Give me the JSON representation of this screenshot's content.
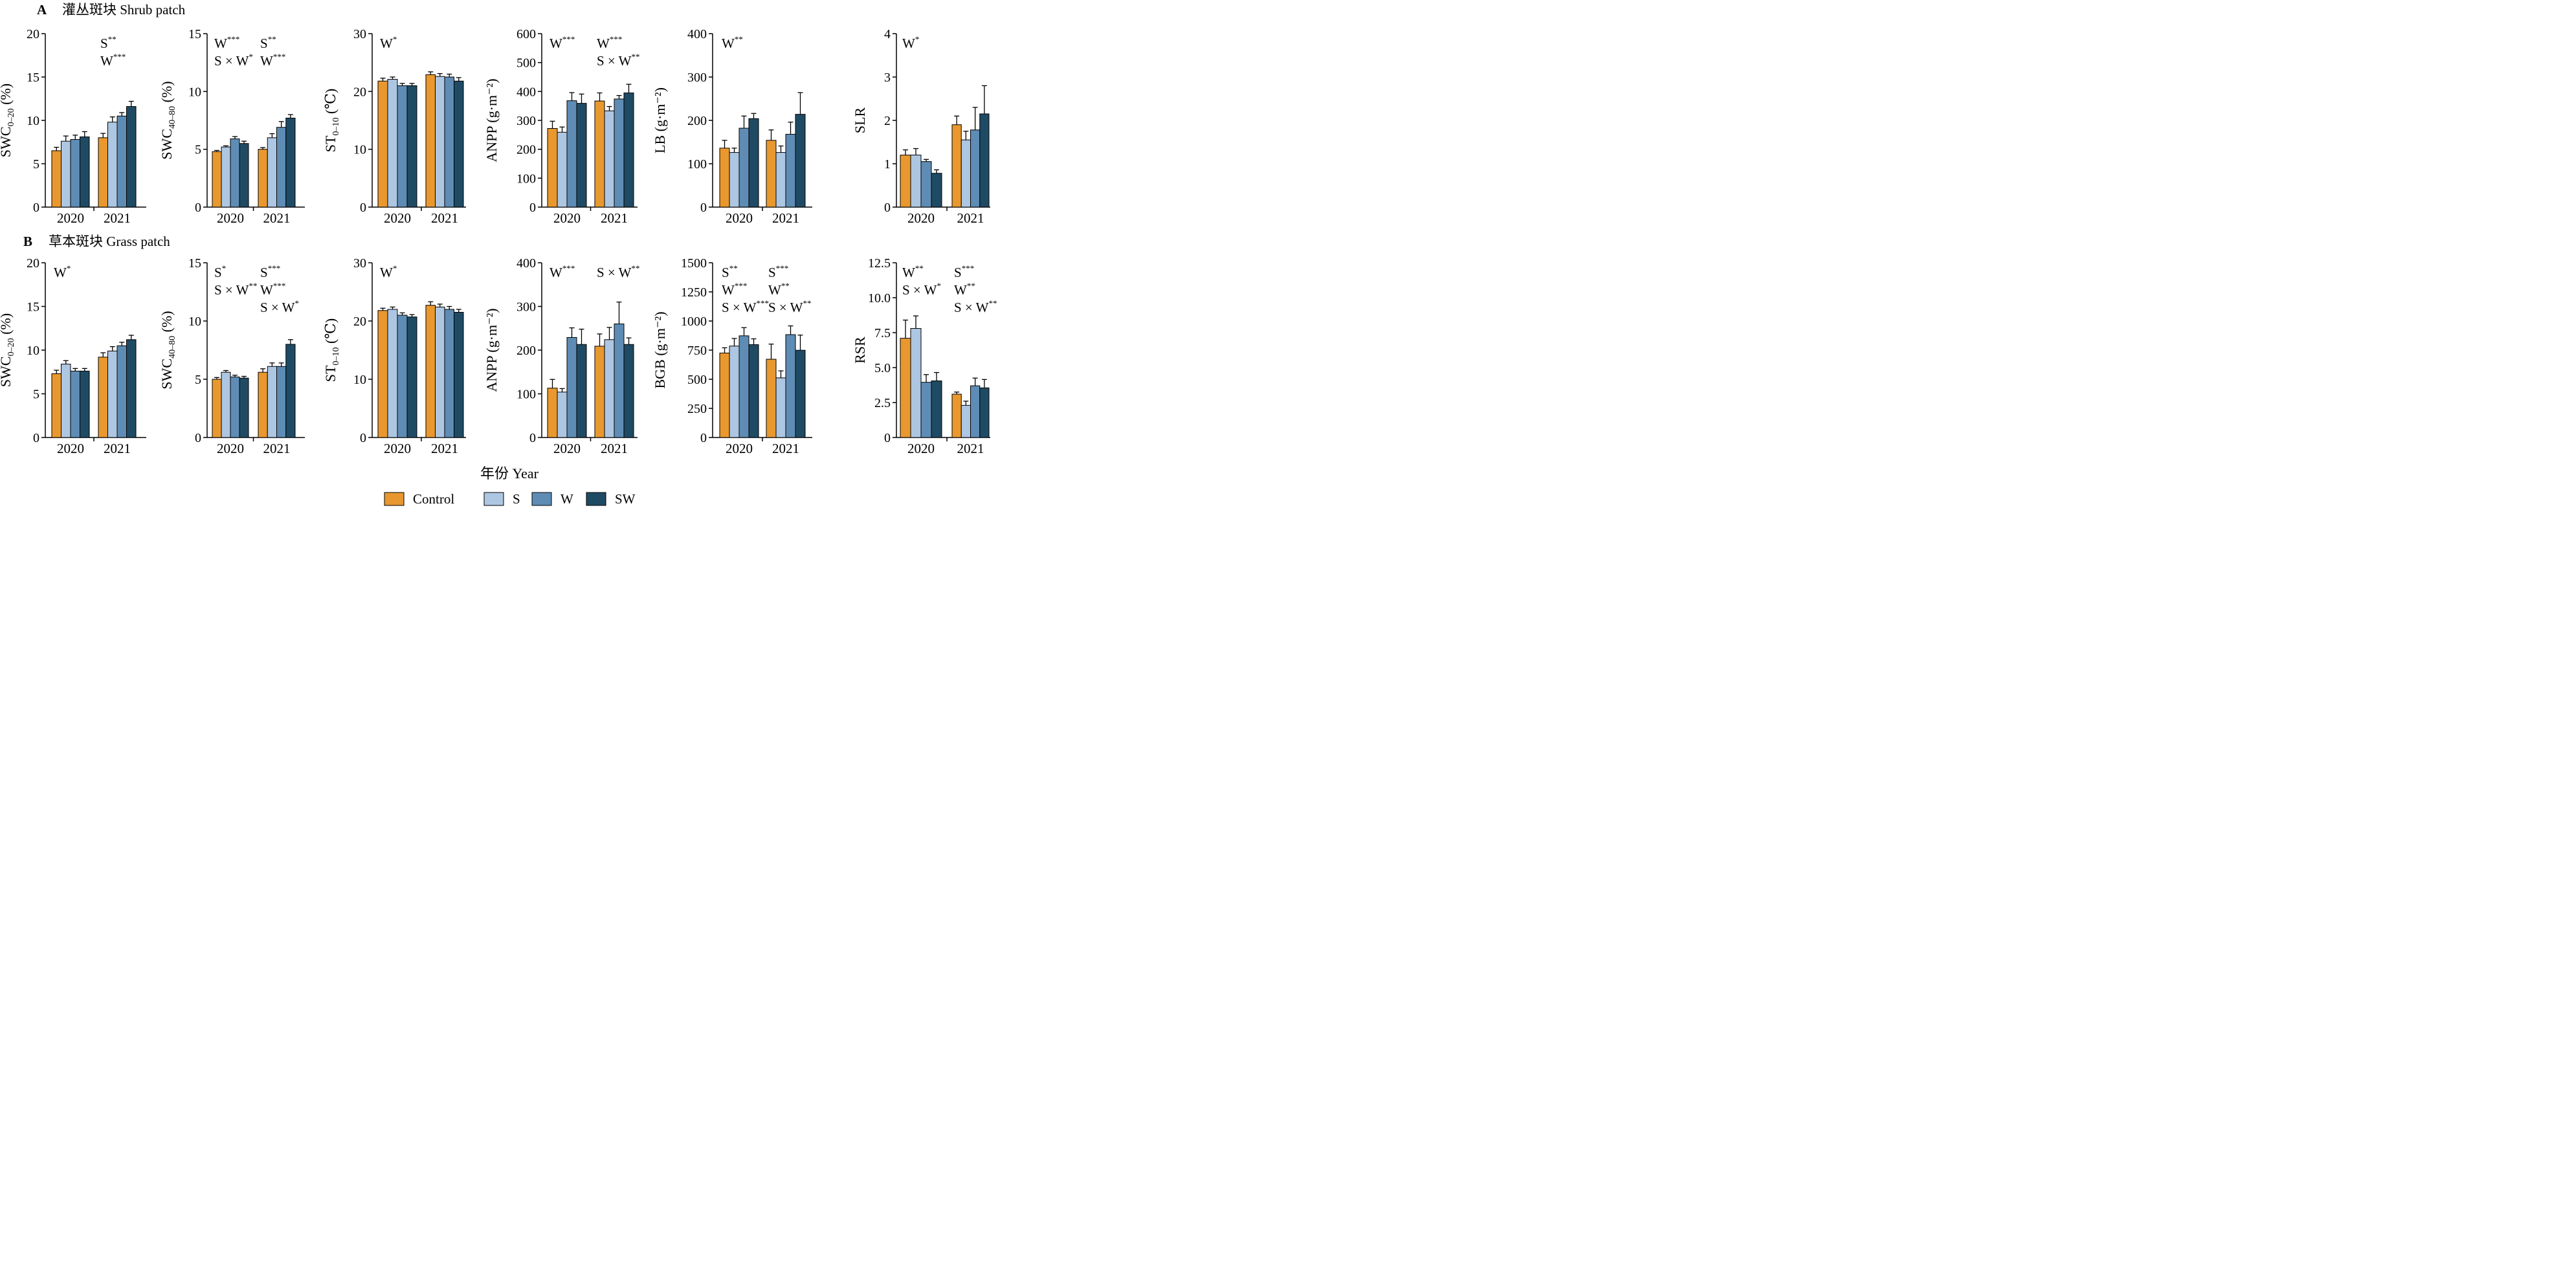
{
  "sections": [
    {
      "letter": "A",
      "label": "灌丛斑块 Shrub patch"
    },
    {
      "letter": "B",
      "label": "草本斑块 Grass patch"
    }
  ],
  "xlabel": "年份 Year",
  "legend": [
    {
      "label": "Control",
      "color": "#E8982E"
    },
    {
      "label": "S",
      "color": "#ADC6E2"
    },
    {
      "label": "W",
      "color": "#5E8CB4"
    },
    {
      "label": "SW",
      "color": "#1F4A64"
    }
  ],
  "chart_data": [
    {
      "type": "bar",
      "panel": "A1",
      "ylabel": "SWC",
      "ylabel_sub": "0–20",
      "ylabel_unit": " (%)",
      "categories": [
        "2020",
        "2021"
      ],
      "ylim": [
        0,
        20
      ],
      "yticks": [
        "0",
        "5",
        "10",
        "15",
        "20"
      ],
      "series": [
        {
          "name": "Control",
          "values": [
            6.5,
            8.0
          ],
          "err": [
            0.4,
            0.5
          ]
        },
        {
          "name": "S",
          "values": [
            7.6,
            9.8
          ],
          "err": [
            0.6,
            0.6
          ]
        },
        {
          "name": "W",
          "values": [
            7.8,
            10.5
          ],
          "err": [
            0.5,
            0.4
          ]
        },
        {
          "name": "SW",
          "values": [
            8.1,
            11.6
          ],
          "err": [
            0.6,
            0.6
          ]
        }
      ],
      "annotations": [
        [
          {
            "base": "S",
            "sup": "**"
          }
        ],
        [
          {
            "base": "W",
            "sup": "***"
          }
        ]
      ]
    },
    {
      "type": "bar",
      "panel": "A2",
      "ylabel": "SWC",
      "ylabel_sub": "40–80",
      "ylabel_unit": " (%)",
      "categories": [
        "2020",
        "2021"
      ],
      "ylim": [
        0,
        15
      ],
      "yticks": [
        "0",
        "5",
        "10",
        "15"
      ],
      "series": [
        {
          "name": "Control",
          "values": [
            4.8,
            5.0
          ],
          "err": [
            0.1,
            0.15
          ]
        },
        {
          "name": "S",
          "values": [
            5.2,
            6.0
          ],
          "err": [
            0.1,
            0.35
          ]
        },
        {
          "name": "W",
          "values": [
            5.9,
            6.9
          ],
          "err": [
            0.2,
            0.5
          ]
        },
        {
          "name": "SW",
          "values": [
            5.5,
            7.7
          ],
          "err": [
            0.2,
            0.3
          ]
        }
      ],
      "annotations": [
        [
          {
            "base": "W",
            "sup": "***"
          },
          {
            "base": "S",
            "sup": "**"
          }
        ],
        [
          {
            "base": "S × W",
            "sup": "*"
          },
          {
            "base": "W",
            "sup": "***"
          }
        ]
      ]
    },
    {
      "type": "bar",
      "panel": "A3",
      "ylabel": "ST",
      "ylabel_sub": "0–10",
      "ylabel_unit": " (℃)",
      "categories": [
        "2020",
        "2021"
      ],
      "ylim": [
        0,
        30
      ],
      "yticks": [
        "0",
        "10",
        "20",
        "30"
      ],
      "series": [
        {
          "name": "Control",
          "values": [
            21.8,
            22.9
          ],
          "err": [
            0.5,
            0.5
          ]
        },
        {
          "name": "S",
          "values": [
            22.1,
            22.6
          ],
          "err": [
            0.4,
            0.5
          ]
        },
        {
          "name": "W",
          "values": [
            21.0,
            22.5
          ],
          "err": [
            0.4,
            0.5
          ]
        },
        {
          "name": "SW",
          "values": [
            21.0,
            21.8
          ],
          "err": [
            0.4,
            0.6
          ]
        }
      ],
      "annotations": [
        [
          {
            "base": "W",
            "sup": "*"
          }
        ]
      ]
    },
    {
      "type": "bar",
      "panel": "A4",
      "ylabel": "ANPP",
      "ylabel_unit": " (g·m⁻²)",
      "categories": [
        "2020",
        "2021"
      ],
      "ylim": [
        0,
        600
      ],
      "yticks": [
        "0",
        "100",
        "200",
        "300",
        "400",
        "500",
        "600"
      ],
      "series": [
        {
          "name": "Control",
          "values": [
            272,
            367
          ],
          "err": [
            25,
            28
          ]
        },
        {
          "name": "S",
          "values": [
            259,
            333
          ],
          "err": [
            18,
            15
          ]
        },
        {
          "name": "W",
          "values": [
            368,
            374
          ],
          "err": [
            28,
            12
          ]
        },
        {
          "name": "SW",
          "values": [
            359,
            395
          ],
          "err": [
            32,
            30
          ]
        }
      ],
      "annotations": [
        [
          {
            "base": "W",
            "sup": "***"
          },
          {
            "base": "W",
            "sup": "***"
          }
        ],
        [
          {
            "base": "",
            "sup": ""
          },
          {
            "base": "S × W",
            "sup": "**"
          }
        ]
      ]
    },
    {
      "type": "bar",
      "panel": "A5",
      "ylabel": "LB",
      "ylabel_unit": " (g·m⁻²)",
      "categories": [
        "2020",
        "2021"
      ],
      "ylim": [
        0,
        400
      ],
      "yticks": [
        "0",
        "100",
        "200",
        "300",
        "400"
      ],
      "series": [
        {
          "name": "Control",
          "values": [
            136,
            154
          ],
          "err": [
            18,
            24
          ]
        },
        {
          "name": "S",
          "values": [
            126,
            126
          ],
          "err": [
            10,
            15
          ]
        },
        {
          "name": "W",
          "values": [
            182,
            168
          ],
          "err": [
            28,
            28
          ]
        },
        {
          "name": "SW",
          "values": [
            204,
            214
          ],
          "err": [
            12,
            50
          ]
        }
      ],
      "annotations": [
        [
          {
            "base": "W",
            "sup": "**"
          }
        ]
      ]
    },
    {
      "type": "bar",
      "panel": "A6",
      "ylabel": "SLR",
      "categories": [
        "2020",
        "2021"
      ],
      "ylim": [
        0,
        4
      ],
      "yticks": [
        "0",
        "1",
        "2",
        "3",
        "4"
      ],
      "series": [
        {
          "name": "Control",
          "values": [
            1.2,
            1.9
          ],
          "err": [
            0.12,
            0.2
          ]
        },
        {
          "name": "S",
          "values": [
            1.2,
            1.55
          ],
          "err": [
            0.15,
            0.2
          ]
        },
        {
          "name": "W",
          "values": [
            1.05,
            1.78
          ],
          "err": [
            0.05,
            0.52
          ]
        },
        {
          "name": "SW",
          "values": [
            0.78,
            2.15
          ],
          "err": [
            0.08,
            0.65
          ]
        }
      ],
      "annotations": [
        [
          {
            "base": "W",
            "sup": "*"
          }
        ]
      ]
    },
    {
      "type": "bar",
      "panel": "B1",
      "ylabel": "SWC",
      "ylabel_sub": "0–20",
      "ylabel_unit": " (%)",
      "categories": [
        "2020",
        "2021"
      ],
      "ylim": [
        0,
        20
      ],
      "yticks": [
        "0",
        "5",
        "10",
        "15",
        "20"
      ],
      "series": [
        {
          "name": "Control",
          "values": [
            7.3,
            9.2
          ],
          "err": [
            0.4,
            0.5
          ]
        },
        {
          "name": "S",
          "values": [
            8.4,
            9.9
          ],
          "err": [
            0.4,
            0.5
          ]
        },
        {
          "name": "W",
          "values": [
            7.6,
            10.5
          ],
          "err": [
            0.3,
            0.4
          ]
        },
        {
          "name": "SW",
          "values": [
            7.6,
            11.2
          ],
          "err": [
            0.3,
            0.5
          ]
        }
      ],
      "annotations": [
        [
          {
            "base": "W",
            "sup": "*"
          }
        ]
      ]
    },
    {
      "type": "bar",
      "panel": "B2",
      "ylabel": "SWC",
      "ylabel_sub": "40–80",
      "ylabel_unit": " (%)",
      "categories": [
        "2020",
        "2021"
      ],
      "ylim": [
        0,
        15
      ],
      "yticks": [
        "0",
        "5",
        "10",
        "15"
      ],
      "series": [
        {
          "name": "Control",
          "values": [
            5.0,
            5.6
          ],
          "err": [
            0.15,
            0.3
          ]
        },
        {
          "name": "S",
          "values": [
            5.6,
            6.1
          ],
          "err": [
            0.15,
            0.3
          ]
        },
        {
          "name": "W",
          "values": [
            5.2,
            6.1
          ],
          "err": [
            0.15,
            0.3
          ]
        },
        {
          "name": "SW",
          "values": [
            5.1,
            8.0
          ],
          "err": [
            0.15,
            0.4
          ]
        }
      ],
      "annotations": [
        [
          {
            "base": "S",
            "sup": "*"
          },
          {
            "base": "S",
            "sup": "***"
          }
        ],
        [
          {
            "base": "S × W",
            "sup": "**"
          },
          {
            "base": "W",
            "sup": "***"
          }
        ],
        [
          {
            "base": "",
            "sup": ""
          },
          {
            "base": "S × W",
            "sup": "*"
          }
        ]
      ]
    },
    {
      "type": "bar",
      "panel": "B3",
      "ylabel": "ST",
      "ylabel_sub": "0–10",
      "ylabel_unit": " (℃)",
      "categories": [
        "2020",
        "2021"
      ],
      "ylim": [
        0,
        30
      ],
      "yticks": [
        "0",
        "10",
        "20",
        "30"
      ],
      "series": [
        {
          "name": "Control",
          "values": [
            21.8,
            22.7
          ],
          "err": [
            0.4,
            0.6
          ]
        },
        {
          "name": "S",
          "values": [
            22.0,
            22.4
          ],
          "err": [
            0.4,
            0.5
          ]
        },
        {
          "name": "W",
          "values": [
            21.0,
            22.0
          ],
          "err": [
            0.4,
            0.5
          ]
        },
        {
          "name": "SW",
          "values": [
            20.7,
            21.5
          ],
          "err": [
            0.4,
            0.5
          ]
        }
      ],
      "annotations": [
        [
          {
            "base": "W",
            "sup": "*"
          }
        ]
      ]
    },
    {
      "type": "bar",
      "panel": "B4",
      "ylabel": "ANPP",
      "ylabel_unit": " (g·m⁻²)",
      "categories": [
        "2020",
        "2021"
      ],
      "ylim": [
        0,
        400
      ],
      "yticks": [
        "0",
        "100",
        "200",
        "300",
        "400"
      ],
      "series": [
        {
          "name": "Control",
          "values": [
            113,
            209
          ],
          "err": [
            20,
            28
          ]
        },
        {
          "name": "S",
          "values": [
            104,
            224
          ],
          "err": [
            8,
            28
          ]
        },
        {
          "name": "W",
          "values": [
            229,
            260
          ],
          "err": [
            22,
            50
          ]
        },
        {
          "name": "SW",
          "values": [
            213,
            213
          ],
          "err": [
            35,
            15
          ]
        }
      ],
      "annotations": [
        [
          {
            "base": "W",
            "sup": "***"
          },
          {
            "base": "S × W",
            "sup": "**"
          }
        ]
      ]
    },
    {
      "type": "bar",
      "panel": "B5",
      "ylabel": "BGB",
      "ylabel_unit": " (g·m⁻²)",
      "categories": [
        "2020",
        "2021"
      ],
      "ylim": [
        0,
        1500
      ],
      "yticks": [
        "0",
        "250",
        "500",
        "750",
        "1000",
        "1250",
        "1500"
      ],
      "series": [
        {
          "name": "Control",
          "values": [
            725,
            672
          ],
          "err": [
            45,
            130
          ]
        },
        {
          "name": "S",
          "values": [
            785,
            512
          ],
          "err": [
            65,
            60
          ]
        },
        {
          "name": "W",
          "values": [
            873,
            883
          ],
          "err": [
            70,
            75
          ]
        },
        {
          "name": "SW",
          "values": [
            797,
            749
          ],
          "err": [
            50,
            130
          ]
        }
      ],
      "annotations": [
        [
          {
            "base": "S",
            "sup": "**"
          },
          {
            "base": "S",
            "sup": "***"
          }
        ],
        [
          {
            "base": "W",
            "sup": "***"
          },
          {
            "base": "W",
            "sup": "**"
          }
        ],
        [
          {
            "base": "S × W",
            "sup": "***"
          },
          {
            "base": "S × W",
            "sup": "**"
          }
        ]
      ]
    },
    {
      "type": "bar",
      "panel": "B6",
      "ylabel": "RSR",
      "categories": [
        "2020",
        "2021"
      ],
      "ylim": [
        0,
        12.5
      ],
      "yticks": [
        "0",
        "2.5",
        "5.0",
        "7.5",
        "10.0",
        "12.5"
      ],
      "series": [
        {
          "name": "Control",
          "values": [
            7.1,
            3.1
          ],
          "err": [
            1.3,
            0.15
          ]
        },
        {
          "name": "S",
          "values": [
            7.8,
            2.3
          ],
          "err": [
            0.9,
            0.3
          ]
        },
        {
          "name": "W",
          "values": [
            3.95,
            3.7
          ],
          "err": [
            0.55,
            0.55
          ]
        },
        {
          "name": "SW",
          "values": [
            4.05,
            3.55
          ],
          "err": [
            0.6,
            0.6
          ]
        }
      ],
      "annotations": [
        [
          {
            "base": "W",
            "sup": "**"
          },
          {
            "base": "S",
            "sup": "***"
          }
        ],
        [
          {
            "base": "S × W",
            "sup": "*"
          },
          {
            "base": "W",
            "sup": "**"
          }
        ],
        [
          {
            "base": "",
            "sup": ""
          },
          {
            "base": "S × W",
            "sup": "**"
          }
        ]
      ]
    }
  ]
}
